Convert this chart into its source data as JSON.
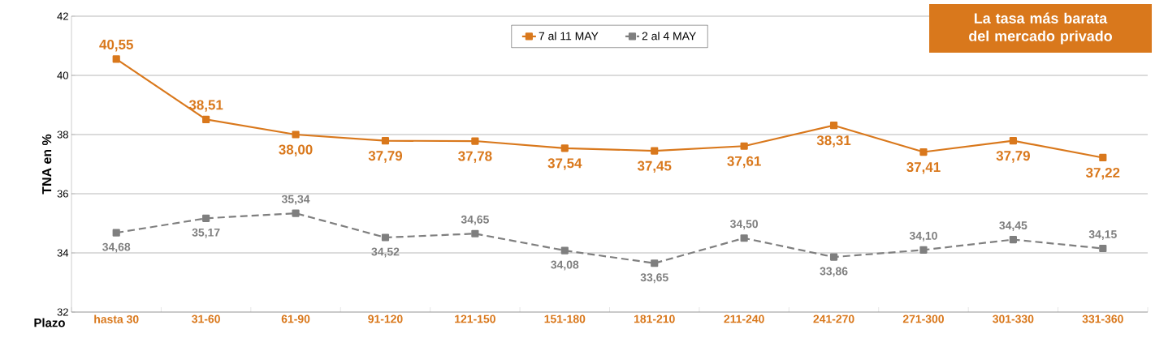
{
  "chart_data": {
    "type": "line",
    "categories": [
      "hasta 30",
      "31-60",
      "61-90",
      "91-120",
      "121-150",
      "151-180",
      "181-210",
      "211-240",
      "241-270",
      "271-300",
      "301-330",
      "331-360"
    ],
    "series": [
      {
        "name": "7  al 11 MAY",
        "color": "#d9781c",
        "line_style": "solid",
        "values": [
          40.55,
          38.51,
          38.0,
          37.79,
          37.78,
          37.54,
          37.45,
          37.61,
          38.31,
          37.41,
          37.79,
          37.22
        ],
        "value_labels": [
          "40,55",
          "38,51",
          "38,00",
          "37,79",
          "37,78",
          "37,54",
          "37,45",
          "37,61",
          "38,31",
          "37,41",
          "37,79",
          "37,22"
        ]
      },
      {
        "name": "2 al 4 MAY",
        "color": "#7f7f7f",
        "line_style": "dashed",
        "values": [
          34.68,
          35.17,
          35.34,
          34.52,
          34.65,
          34.08,
          33.65,
          34.5,
          33.86,
          34.1,
          34.45,
          34.15
        ],
        "value_labels": [
          "34,68",
          "35,17",
          "35,34",
          "34,52",
          "34,65",
          "34,08",
          "33,65",
          "34,50",
          "33,86",
          "34,10",
          "34,45",
          "34,15"
        ]
      }
    ],
    "xlabel": "Plazo",
    "ylabel": "TNA en %",
    "ylim": [
      32,
      42
    ],
    "yticks": [
      32,
      34,
      36,
      38,
      40,
      42
    ],
    "grid": "y",
    "legend": "top",
    "marker": "square",
    "annotations": [
      "La tasa más barata del mercado privado"
    ]
  }
}
